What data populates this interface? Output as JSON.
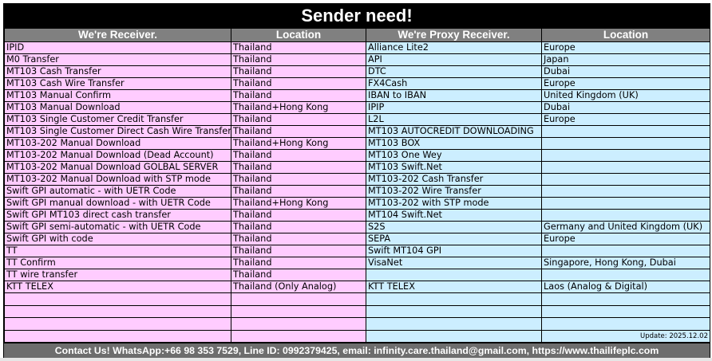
{
  "title": "Sender need!",
  "headers": {
    "receiver": "We're Receiver.",
    "receiver_location": "Location",
    "proxy": "We're Proxy Receiver.",
    "proxy_location": "Location"
  },
  "rows": [
    {
      "receiver": "IPID",
      "receiver_location": "Thailand",
      "proxy": "Alliance Lite2",
      "proxy_location": "Europe"
    },
    {
      "receiver": "M0 Transfer",
      "receiver_location": "Thailand",
      "proxy": "API",
      "proxy_location": "Japan"
    },
    {
      "receiver": "MT103 Cash Transfer",
      "receiver_location": "Thailand",
      "proxy": "DTC",
      "proxy_location": "Dubai"
    },
    {
      "receiver": "MT103 Cash Wire Transfer",
      "receiver_location": "Thailand",
      "proxy": "FX4Cash",
      "proxy_location": "Europe"
    },
    {
      "receiver": "MT103 Manual Confirm",
      "receiver_location": "Thailand",
      "proxy": "IBAN to IBAN",
      "proxy_location": "United Kingdom (UK)"
    },
    {
      "receiver": "MT103 Manual Download",
      "receiver_location": "Thailand+Hong Kong",
      "proxy": "IPIP",
      "proxy_location": "Dubai"
    },
    {
      "receiver": "MT103 Single Customer Credit Transfer",
      "receiver_location": "Thailand",
      "proxy": "L2L",
      "proxy_location": "Europe"
    },
    {
      "receiver": "MT103 Single Customer Direct Cash Wire Transfer",
      "receiver_location": "Thailand",
      "proxy": "MT103 AUTOCREDIT DOWNLOADING",
      "proxy_location": ""
    },
    {
      "receiver": "MT103-202 Manual Download",
      "receiver_location": "Thailand+Hong Kong",
      "proxy": "MT103 BOX",
      "proxy_location": ""
    },
    {
      "receiver": "MT103-202 Manual Download (Dead Account)",
      "receiver_location": "Thailand",
      "proxy": "MT103 One Wey",
      "proxy_location": ""
    },
    {
      "receiver": "MT103-202 Manual Download GOLBAL SERVER",
      "receiver_location": "Thailand",
      "proxy": "MT103 Swift.Net",
      "proxy_location": ""
    },
    {
      "receiver": "MT103-202 Manual Download with STP mode",
      "receiver_location": "Thailand",
      "proxy": "MT103-202 Cash Transfer",
      "proxy_location": ""
    },
    {
      "receiver": "Swift GPI automatic - with UETR Code",
      "receiver_location": "Thailand",
      "proxy": "MT103-202 Wire Transfer",
      "proxy_location": ""
    },
    {
      "receiver": "Swift GPI manual download - with UETR Code",
      "receiver_location": "Thailand+Hong Kong",
      "proxy": "MT103-202 with STP mode",
      "proxy_location": ""
    },
    {
      "receiver": "Swift GPI MT103 direct cash transfer",
      "receiver_location": "Thailand",
      "proxy": "MT104 Swift.Net",
      "proxy_location": ""
    },
    {
      "receiver": "Swift GPI semi-automatic - with UETR Code",
      "receiver_location": "Thailand",
      "proxy": "S2S",
      "proxy_location": "Germany and United Kingdom (UK)"
    },
    {
      "receiver": "Swift GPI with code",
      "receiver_location": "Thailand",
      "proxy": "SEPA",
      "proxy_location": "Europe"
    },
    {
      "receiver": "TT",
      "receiver_location": "Thailand",
      "proxy": "Swift MT104 GPI",
      "proxy_location": ""
    },
    {
      "receiver": "TT Confirm",
      "receiver_location": "Thailand",
      "proxy": "VisaNet",
      "proxy_location": "Singapore, Hong Kong, Dubai"
    },
    {
      "receiver": "TT wire transfer",
      "receiver_location": "Thailand",
      "proxy": "",
      "proxy_location": ""
    },
    {
      "receiver": "KTT TELEX",
      "receiver_location": "Thailand (Only Analog)",
      "proxy": "KTT TELEX",
      "proxy_location": "Laos (Analog & Digital)"
    }
  ],
  "update": "Update: 2025.12.02",
  "footer": "Contact Us! WhatsApp:+66 98 353 7529, Line ID: 0992379425, email: infinity.care.thailand@gmail.com,  https://www.thailifeplc.com",
  "colors": {
    "receiver_bg": "#ffccff",
    "proxy_bg": "#cceeff",
    "header_bg": "#808080",
    "title_bg": "#000000"
  }
}
